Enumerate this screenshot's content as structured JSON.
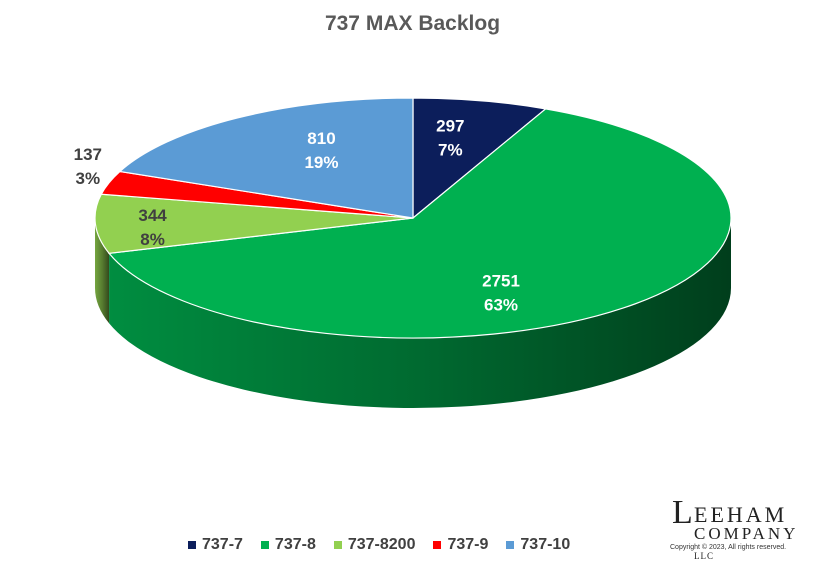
{
  "chart_data": {
    "type": "pie",
    "title": "737 MAX Backlog",
    "categories": [
      "737-7",
      "737-8",
      "737-8200",
      "737-9",
      "737-10"
    ],
    "values": [
      297,
      2751,
      344,
      137,
      810
    ],
    "percent_labels": [
      "7%",
      "63%",
      "8%",
      "3%",
      "19%"
    ],
    "value_labels": [
      "297",
      "2751",
      "344",
      "137",
      "810"
    ],
    "colors": [
      "#0c1e5b",
      "#00b050",
      "#92d050",
      "#ff0000",
      "#5b9bd5"
    ],
    "legend_position": "bottom"
  },
  "logo": {
    "text_first": "L",
    "text_line1": "EEHAM",
    "text_first2": "C",
    "text_line2": "OMPANY",
    "suffix": "LLC",
    "copyright": "Copyright © 2023, All rights reserved."
  }
}
